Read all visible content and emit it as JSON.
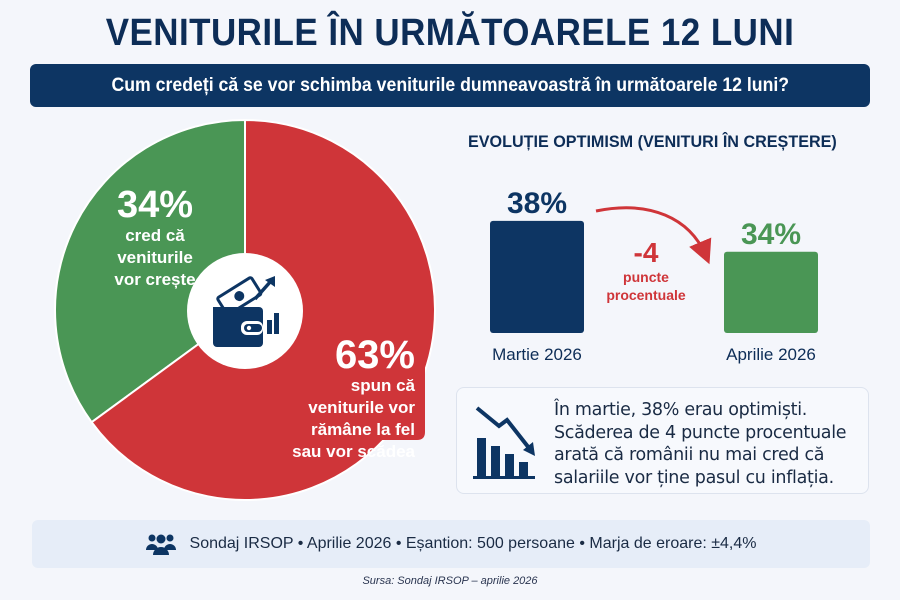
{
  "header": {
    "title": "VENITURILE ÎN URMĂTOARELE 12 LUNI",
    "question": "Cum credeți că se vor schimba veniturile dumneavoastră în următoarele 12 luni?"
  },
  "colors": {
    "navy": "#0d3563",
    "green": "#4a9655",
    "red": "#cf3539",
    "background": "#f4f6fb"
  },
  "chart_data": [
    {
      "type": "pie",
      "title": "Cum credeți că se vor schimba veniturile dumneavoastră în următoarele 12 luni?",
      "slices": [
        {
          "name": "cred că veniturile vor crește",
          "value": 34,
          "label": "34%",
          "color": "#4a9655"
        },
        {
          "name": "spun că veniturile vor rămâne la fel sau vor scădea",
          "value": 63,
          "label": "63%",
          "color": "#cf3539"
        }
      ],
      "center_icon": "wallet-money-growth-icon"
    },
    {
      "type": "bar",
      "title": "EVOLUȚIE OPTIMISM (VENITURI ÎN CREȘTERE)",
      "categories": [
        "Martie 2026",
        "Aprilie 2026"
      ],
      "values": [
        38,
        34
      ],
      "value_labels": [
        "38%",
        "34%"
      ],
      "bar_colors": [
        "#0d3563",
        "#4a9655"
      ],
      "ylim": [
        0,
        40
      ],
      "annotation": {
        "value": "-4",
        "text_line1": "puncte",
        "text_line2": "procentuale",
        "color": "#cf3539"
      }
    }
  ],
  "pie_labels": {
    "green_pct": "34%",
    "green_desc_1": "cred că",
    "green_desc_2": "veniturile",
    "green_desc_3": "vor crește",
    "red_pct": "63%",
    "red_desc_1": "spun că",
    "red_desc_2": "veniturile vor",
    "red_desc_3": "rămâne la fel",
    "red_desc_4": "sau vor scădea"
  },
  "info_box": {
    "icon": "declining-bar-chart-icon",
    "lines": [
      "În martie, 38% erau optimiști.",
      "Scăderea de 4 puncte procentuale",
      "arată că românii nu mai cred că",
      "salariile vor ține pasul cu inflația."
    ]
  },
  "footer": {
    "icon": "people-group-icon",
    "text": "Sondaj IRSOP  •  Aprilie 2026  •  Eșantion: 500 persoane  •  Marja de eroare: ±4,4%"
  },
  "source": "Sursa: Sondaj IRSOP – aprilie 2026"
}
